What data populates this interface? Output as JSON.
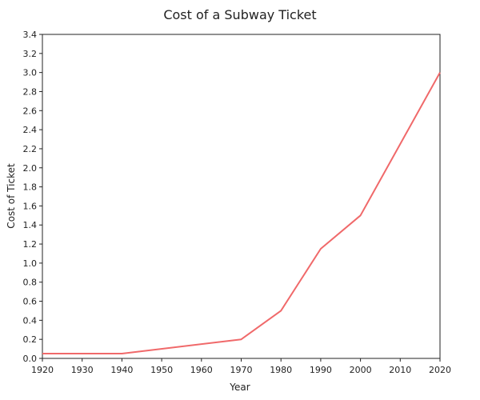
{
  "chart_data": {
    "type": "line",
    "title": "Cost of a Subway Ticket",
    "xlabel": "Year",
    "ylabel": "Cost of Ticket",
    "xlim": [
      1920,
      2020
    ],
    "ylim": [
      0,
      3.4
    ],
    "x_ticks": [
      "1920",
      "1930",
      "1940",
      "1950",
      "1960",
      "1970",
      "1980",
      "1990",
      "2000",
      "2010",
      "2020"
    ],
    "y_ticks": [
      "0.0",
      "0.2",
      "0.4",
      "0.6",
      "0.8",
      "1.0",
      "1.2",
      "1.4",
      "1.6",
      "1.8",
      "2.0",
      "2.2",
      "2.4",
      "2.6",
      "2.8",
      "3.0",
      "3.2",
      "3.4"
    ],
    "grid": false,
    "legend": "none",
    "line_color": "#f0696a",
    "series": [
      {
        "x": [
          1920,
          1940,
          1970,
          1980,
          1990,
          2000,
          2010,
          2020
        ],
        "values": [
          0.05,
          0.05,
          0.2,
          0.5,
          1.15,
          1.5,
          2.25,
          3.0
        ]
      }
    ]
  }
}
